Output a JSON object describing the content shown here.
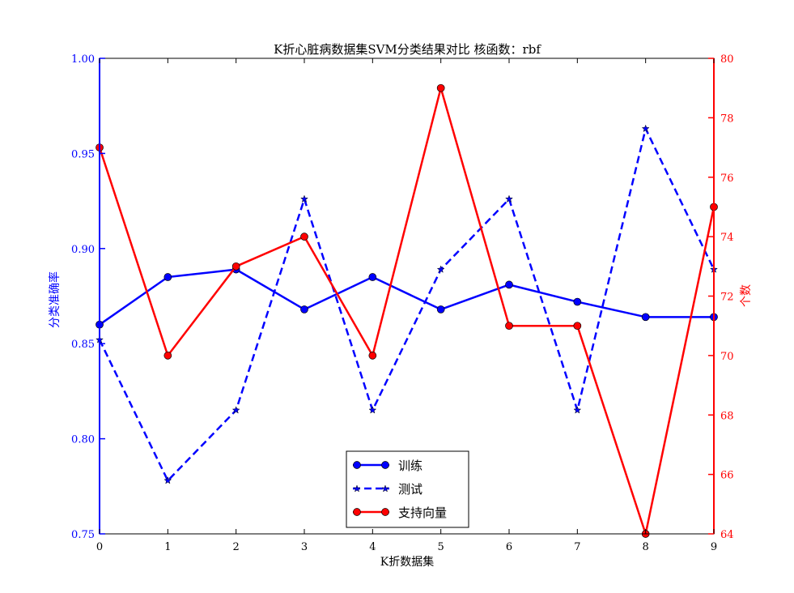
{
  "chart_data": {
    "type": "line",
    "title": "K折心脏病数据集SVM分类结果对比 核函数：rbf",
    "xlabel": "K折数据集",
    "ylabel_left": "分类准确率",
    "ylabel_right": "个数",
    "x": [
      0,
      1,
      2,
      3,
      4,
      5,
      6,
      7,
      8,
      9
    ],
    "xlim": [
      0,
      9
    ],
    "ylim_left": [
      0.75,
      1.0
    ],
    "ylim_right": [
      64,
      80
    ],
    "xticks": [
      "0",
      "1",
      "2",
      "3",
      "4",
      "5",
      "6",
      "7",
      "8",
      "9"
    ],
    "yticks_left": [
      "0.75",
      "0.80",
      "0.85",
      "0.90",
      "0.95",
      "1.00"
    ],
    "yticks_right": [
      "64",
      "66",
      "68",
      "70",
      "72",
      "74",
      "76",
      "78",
      "80"
    ],
    "grid": false,
    "legend_position": "bottom-center",
    "series": [
      {
        "name": "训练",
        "axis": "left",
        "color": "#0000ff",
        "linestyle": "solid",
        "marker": "circle",
        "values": [
          0.86,
          0.885,
          0.889,
          0.868,
          0.885,
          0.868,
          0.881,
          0.872,
          0.864,
          0.864
        ]
      },
      {
        "name": "测试",
        "axis": "left",
        "color": "#0000ff",
        "linestyle": "dashed",
        "marker": "star",
        "values": [
          0.852,
          0.778,
          0.815,
          0.926,
          0.815,
          0.889,
          0.926,
          0.815,
          0.963,
          0.889
        ]
      },
      {
        "name": "支持向量",
        "axis": "right",
        "color": "#ff0000",
        "linestyle": "solid",
        "marker": "circle",
        "values": [
          77,
          70,
          73,
          74,
          70,
          79,
          71,
          71,
          64,
          75
        ]
      }
    ]
  }
}
